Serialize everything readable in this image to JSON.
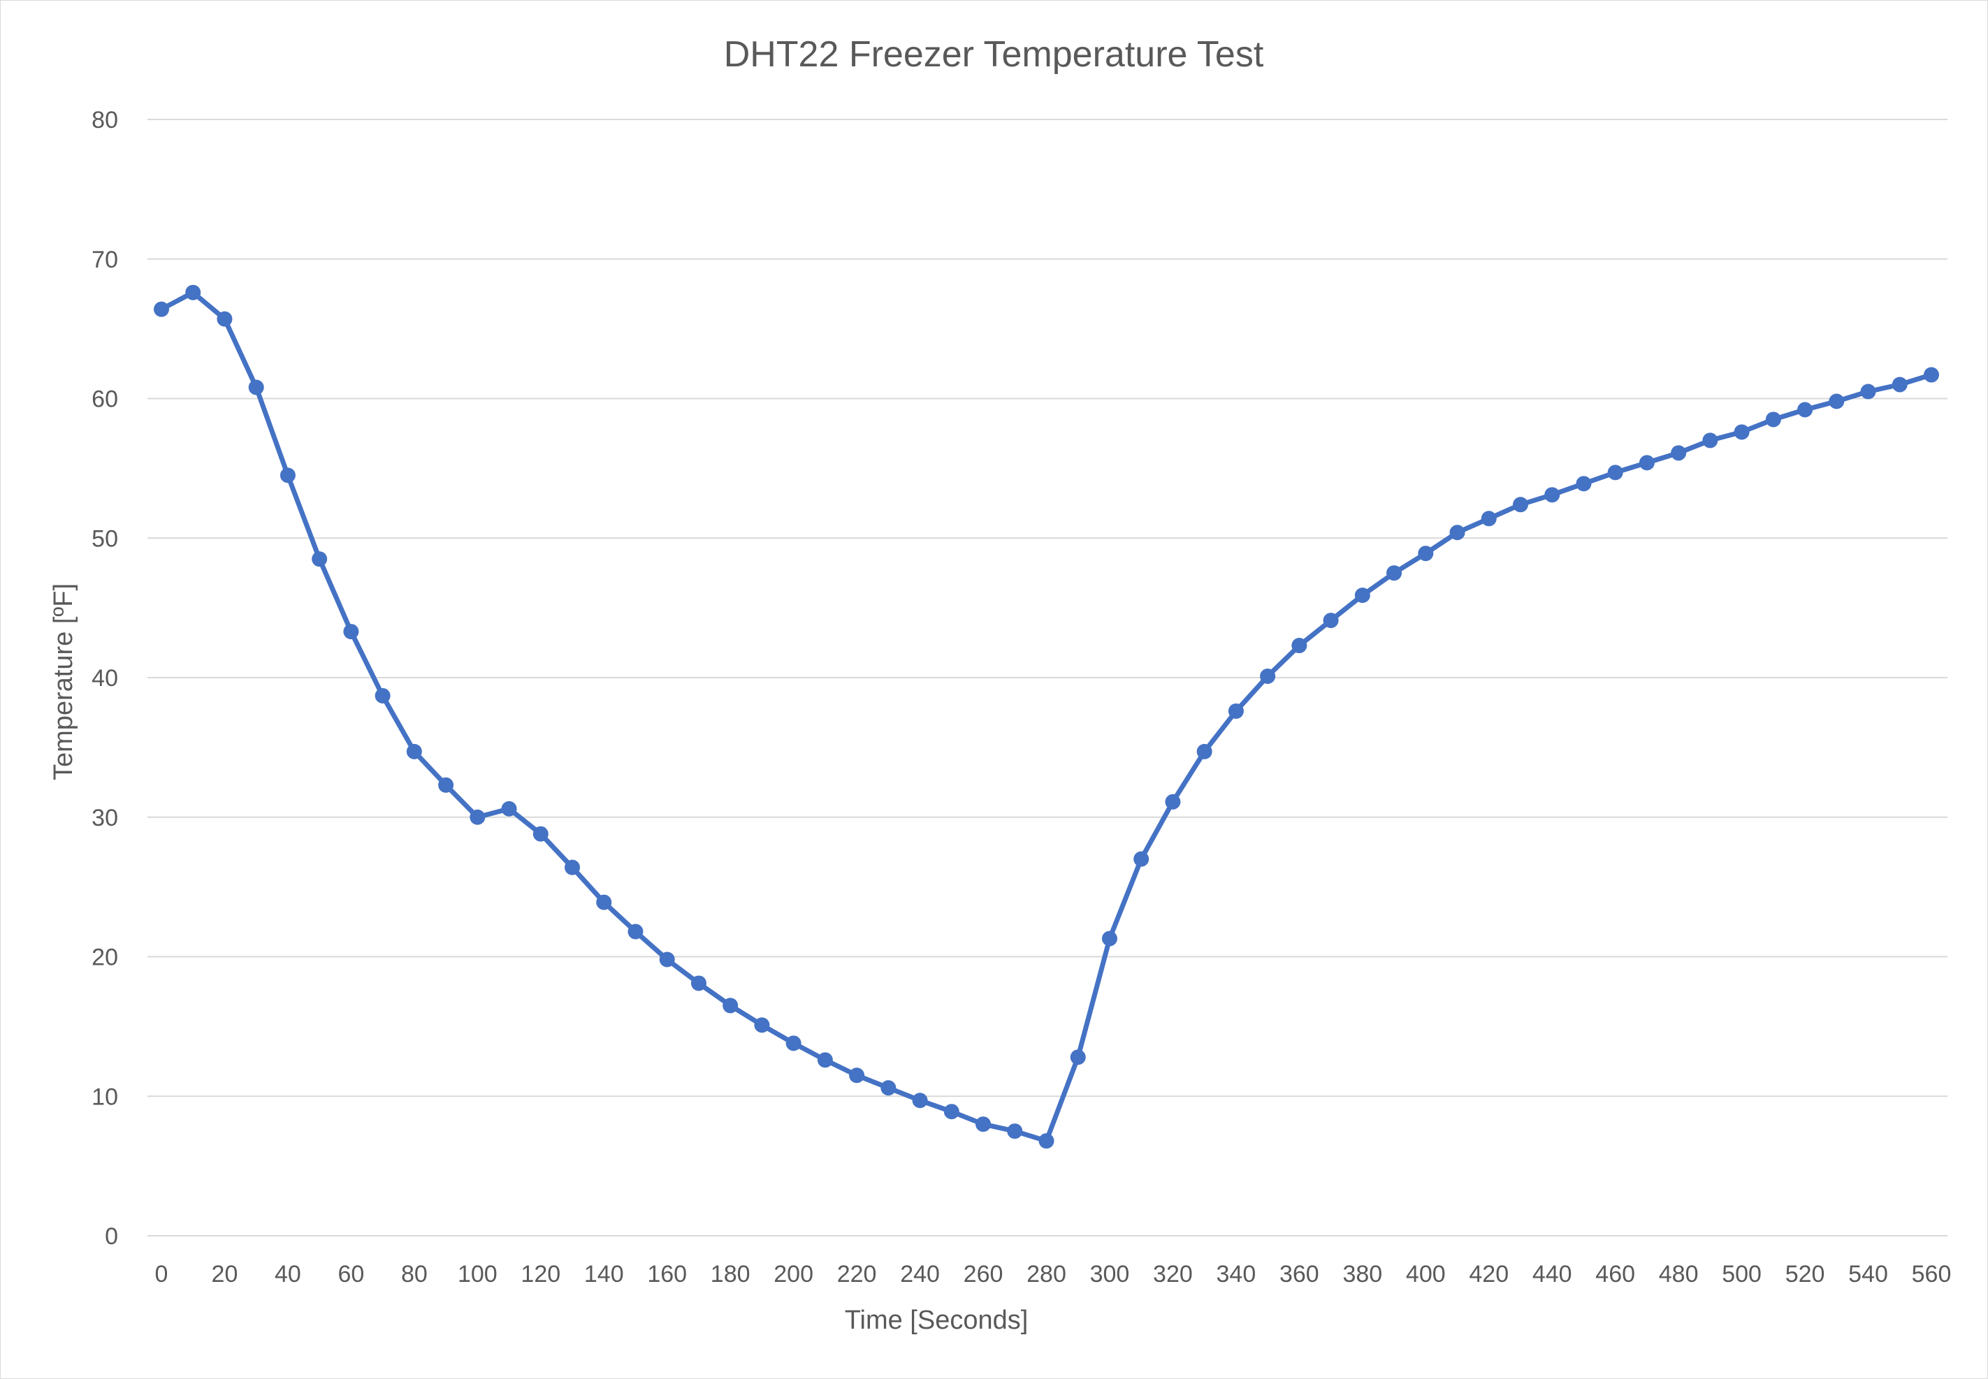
{
  "chart_data": {
    "type": "line",
    "title": "DHT22 Freezer Temperature Test",
    "xlabel": "Time [Seconds]",
    "ylabel": "Temperature [ºF]",
    "xlim": [
      0,
      560
    ],
    "ylim": [
      0,
      80
    ],
    "x_ticks": [
      0,
      20,
      40,
      60,
      80,
      100,
      120,
      140,
      160,
      180,
      200,
      220,
      240,
      260,
      280,
      300,
      320,
      340,
      360,
      380,
      400,
      420,
      440,
      460,
      480,
      500,
      520,
      540,
      560
    ],
    "y_ticks": [
      0,
      10,
      20,
      30,
      40,
      50,
      60,
      70,
      80
    ],
    "grid": "horizontal",
    "legend": "none",
    "series": [
      {
        "color": "#4472c4",
        "marker": "circle",
        "x": [
          0,
          10,
          20,
          30,
          40,
          50,
          60,
          70,
          80,
          90,
          100,
          110,
          120,
          130,
          140,
          150,
          160,
          170,
          180,
          190,
          200,
          210,
          220,
          230,
          240,
          250,
          260,
          270,
          280,
          290,
          300,
          310,
          320,
          330,
          340,
          350,
          360,
          370,
          380,
          390,
          400,
          410,
          420,
          430,
          440,
          450,
          460,
          470,
          480,
          490,
          500,
          510,
          520,
          530,
          540,
          550,
          560
        ],
        "y": [
          66.4,
          67.6,
          65.7,
          60.8,
          54.5,
          48.5,
          43.3,
          38.7,
          34.7,
          32.3,
          30.0,
          30.6,
          28.8,
          26.4,
          23.9,
          21.8,
          19.8,
          18.1,
          16.5,
          15.1,
          13.8,
          12.6,
          11.5,
          10.6,
          9.7,
          8.9,
          8.0,
          7.5,
          6.8,
          12.8,
          21.3,
          27.0,
          31.1,
          34.7,
          37.6,
          40.1,
          42.3,
          44.1,
          45.9,
          47.5,
          48.9,
          50.4,
          51.4,
          52.4,
          53.1,
          53.9,
          54.7,
          55.4,
          56.1,
          57.0,
          57.6,
          58.5,
          59.2,
          59.8,
          60.5,
          61.0,
          61.7
        ]
      }
    ]
  }
}
